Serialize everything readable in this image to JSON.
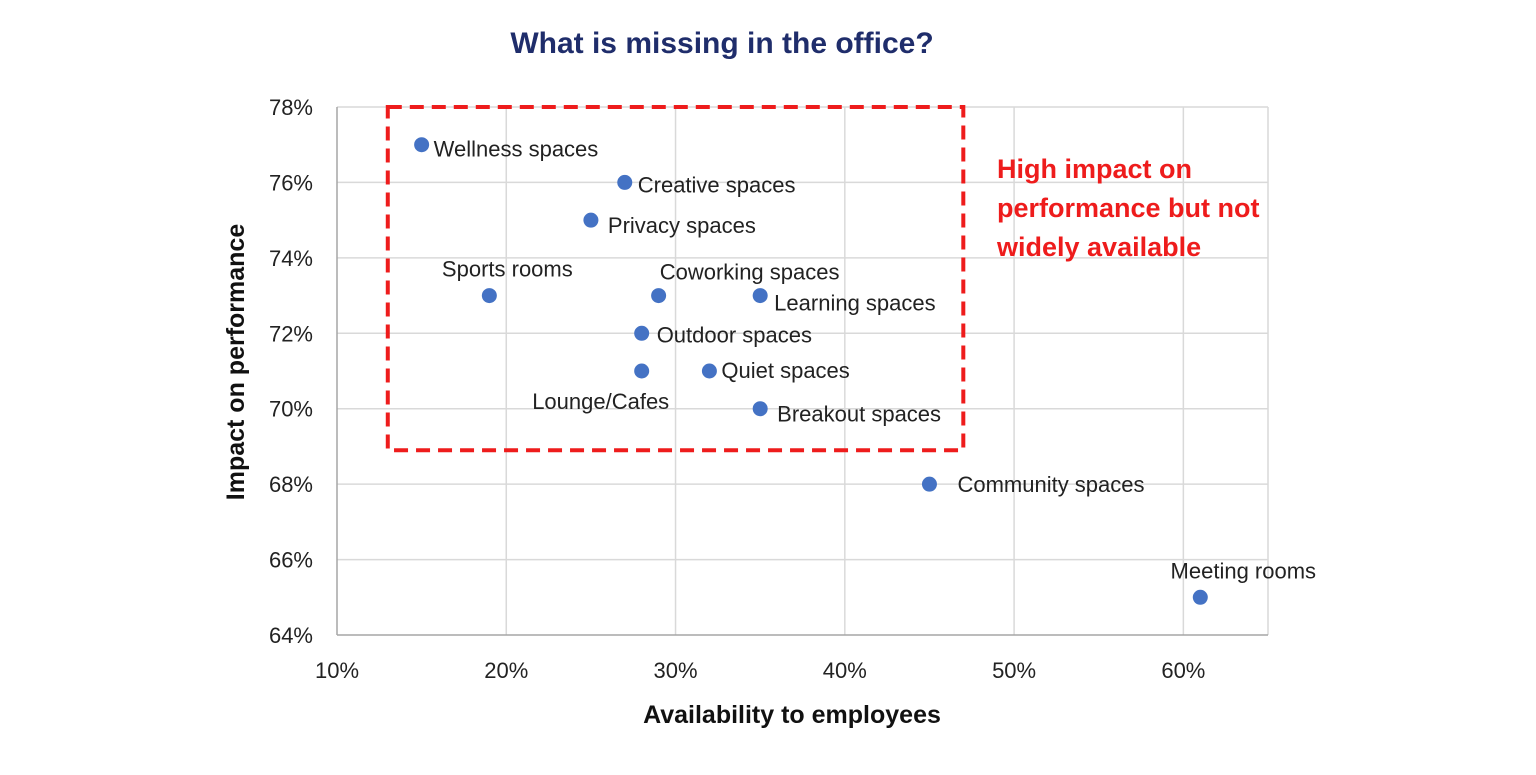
{
  "chart_data": {
    "type": "scatter",
    "title": "What is missing in the office?",
    "xlabel": "Availability to employees",
    "ylabel": "Impact on performance",
    "xlim": [
      10,
      65
    ],
    "ylim": [
      64,
      78
    ],
    "x_ticks": [
      "10%",
      "20%",
      "30%",
      "40%",
      "50%",
      "60%"
    ],
    "y_ticks": [
      "64%",
      "66%",
      "68%",
      "70%",
      "72%",
      "74%",
      "76%",
      "78%"
    ],
    "grid": true,
    "marker_color": "#4472c4",
    "points": [
      {
        "label": "Wellness spaces",
        "x": 15,
        "y": 77
      },
      {
        "label": "Creative spaces",
        "x": 27,
        "y": 76
      },
      {
        "label": "Privacy spaces",
        "x": 25,
        "y": 75
      },
      {
        "label": "Sports rooms",
        "x": 19,
        "y": 73
      },
      {
        "label": "Coworking spaces",
        "x": 29,
        "y": 73
      },
      {
        "label": "Learning spaces",
        "x": 35,
        "y": 73
      },
      {
        "label": "Outdoor spaces",
        "x": 28,
        "y": 72
      },
      {
        "label": "Lounge/Cafes",
        "x": 28,
        "y": 71
      },
      {
        "label": "Quiet spaces",
        "x": 32,
        "y": 71
      },
      {
        "label": "Breakout spaces",
        "x": 35,
        "y": 70
      },
      {
        "label": "Community spaces",
        "x": 45,
        "y": 68
      },
      {
        "label": "Meeting rooms",
        "x": 61,
        "y": 65
      }
    ],
    "annotation": {
      "lines": [
        "High impact on",
        "performance but not",
        "widely available"
      ],
      "color": "#ee1c1c",
      "box_style": "dashed",
      "box_x_range": [
        13,
        47
      ],
      "box_y_range": [
        68.9,
        78
      ]
    }
  }
}
